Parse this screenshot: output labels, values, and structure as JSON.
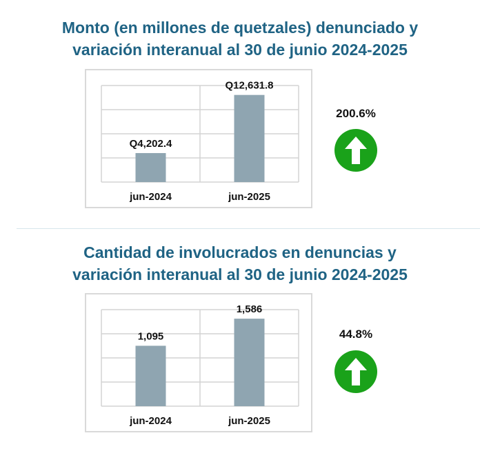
{
  "charts": [
    {
      "title_line1": "Monto (en millones de quetzales) denunciado y",
      "title_line2": "variación interanual al 30 de junio 2024-2025",
      "variation_pct": "200.6%",
      "arrow_icon": "up-arrow-icon",
      "arrow_color": "#1aa21a"
    },
    {
      "title_line1": "Cantidad de involucrados en denuncias y",
      "title_line2": "variación interanual al 30 de junio 2024-2025",
      "variation_pct": "44.8%",
      "arrow_icon": "up-arrow-icon",
      "arrow_color": "#1aa21a"
    }
  ],
  "chart_data": [
    {
      "type": "bar",
      "title": "Monto (en millones de quetzales) denunciado y variación interanual al 30 de junio 2024-2025",
      "categories": [
        "jun-2024",
        "jun-2025"
      ],
      "values": [
        4202.4,
        12631.8
      ],
      "data_labels": [
        "Q4,202.4",
        "Q12,631.8"
      ],
      "ylim": [
        0,
        14000
      ],
      "grid": true,
      "bar_color": "#8fa5b1"
    },
    {
      "type": "bar",
      "title": "Cantidad de involucrados en denuncias y variación interanual al 30 de junio 2024-2025",
      "categories": [
        "jun-2024",
        "jun-2025"
      ],
      "values": [
        1095,
        1586
      ],
      "data_labels": [
        "1,095",
        "1,586"
      ],
      "ylim": [
        0,
        1750
      ],
      "grid": true,
      "bar_color": "#8fa5b1"
    }
  ]
}
